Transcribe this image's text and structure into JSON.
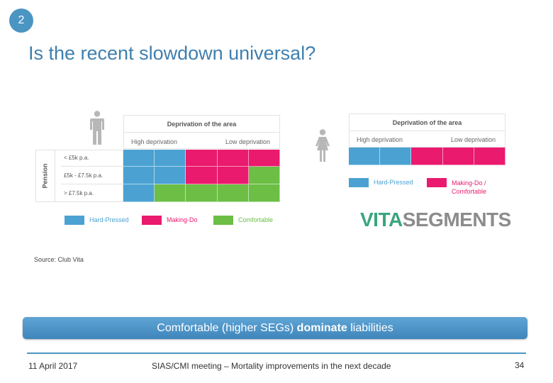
{
  "slide_number": "2",
  "title": "Is the recent slowdown universal?",
  "colors": {
    "hard_pressed": "#4ba2d2",
    "making_do": "#ea1a6e",
    "comfortable": "#6cbe45",
    "accent": "#4b95c3"
  },
  "left_grid": {
    "header": "Deprivation of the area",
    "high_label": "High deprivation",
    "low_label": "Low deprivation",
    "axis_label": "Pension",
    "rows": [
      "< £5k p.a.",
      "£5k - £7.5k p.a.",
      "> £7.5k p.a."
    ],
    "cells": [
      [
        "hard_pressed",
        "hard_pressed",
        "making_do",
        "making_do",
        "making_do"
      ],
      [
        "hard_pressed",
        "hard_pressed",
        "making_do",
        "making_do",
        "comfortable"
      ],
      [
        "hard_pressed",
        "comfortable",
        "comfortable",
        "comfortable",
        "comfortable"
      ]
    ],
    "legend": {
      "hard_pressed": "Hard-Pressed",
      "making_do": "Making-Do",
      "comfortable": "Comfortable"
    }
  },
  "right_grid": {
    "header": "Deprivation of the area",
    "high_label": "High deprivation",
    "low_label": "Low deprivation",
    "cells": [
      "hard_pressed",
      "hard_pressed",
      "making_do",
      "making_do",
      "making_do"
    ],
    "legend": {
      "hard_pressed": "Hard-Pressed",
      "making_do_line1": "Making-Do /",
      "making_do_line2": "Comfortable"
    }
  },
  "logo": {
    "part1": "VITA",
    "part2": "SEGMENTS"
  },
  "source": "Source: Club Vita",
  "banner": {
    "prefix": "Comfortable (higher SEGs) ",
    "bold": "dominate",
    "suffix": " liabilities"
  },
  "footer": {
    "date": "11 April 2017",
    "center": "SIAS/CMI meeting – Mortality improvements in the next decade",
    "page": "34"
  }
}
